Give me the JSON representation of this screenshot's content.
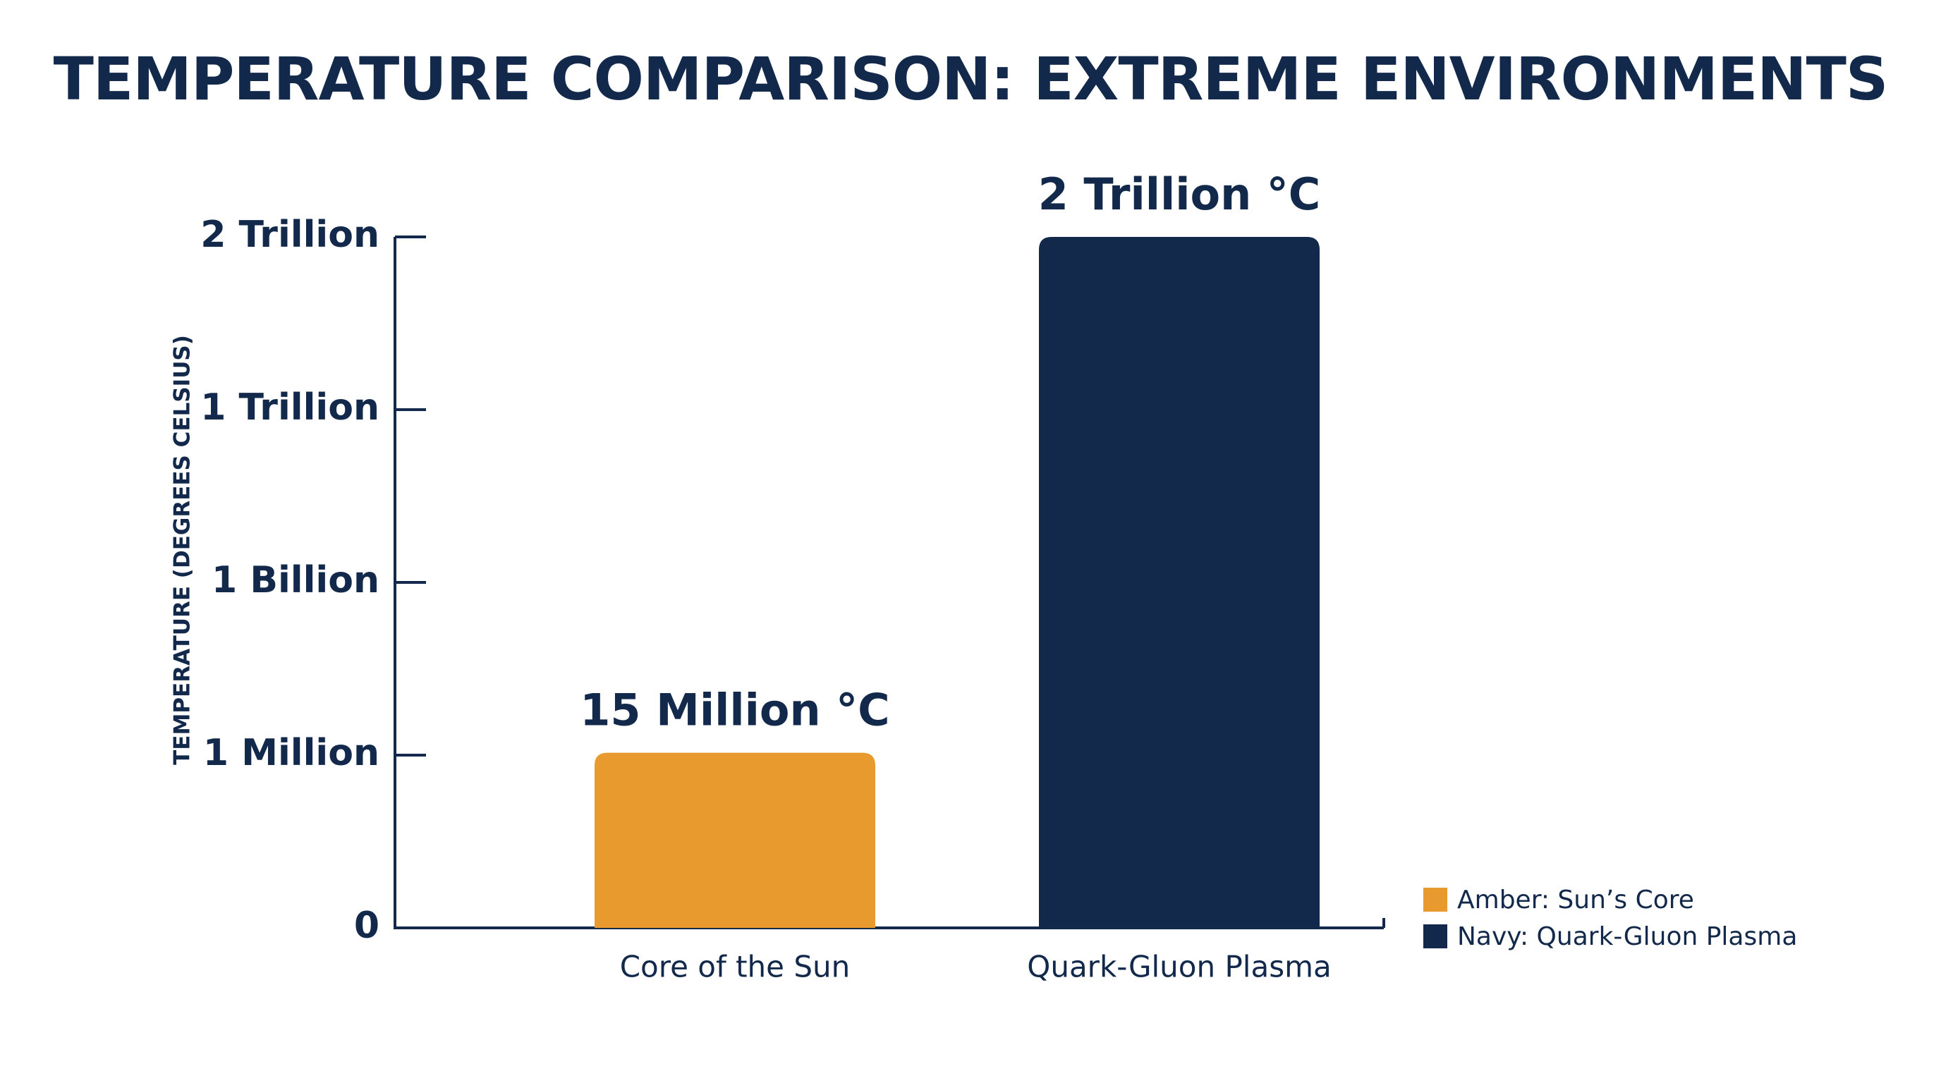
{
  "chart_data": {
    "type": "bar",
    "title": "TEMPERATURE COMPARISON: EXTREME ENVIRONMENTS",
    "ylabel": "TEMPERATURE (DEGREES CELSIUS)",
    "xlabel": "",
    "y_scale": "non-linear (ordinal tick spacing)",
    "ylim": [
      0,
      2000000000000
    ],
    "y_ticks": [
      {
        "value": 0,
        "label": "0"
      },
      {
        "value": 1000000,
        "label": "1 Million"
      },
      {
        "value": 1000000000,
        "label": "1 Billion"
      },
      {
        "value": 1000000000000,
        "label": "1 Trillion"
      },
      {
        "value": 2000000000000,
        "label": "2 Trillion"
      }
    ],
    "categories": [
      "Core of the Sun",
      "Quark-Gluon Plasma"
    ],
    "values": [
      15000000,
      2000000000000
    ],
    "data_labels": [
      "15 Million °C",
      "2 Trillion °C"
    ],
    "colors": [
      "#E89A2E",
      "#13294B"
    ],
    "grid": false,
    "legend_position": "bottom-right",
    "legend": [
      {
        "label": "Amber: Sun’s Core",
        "color": "#E89A2E"
      },
      {
        "label": "Navy: Quark-Gluon Plasma",
        "color": "#13294B"
      }
    ]
  }
}
